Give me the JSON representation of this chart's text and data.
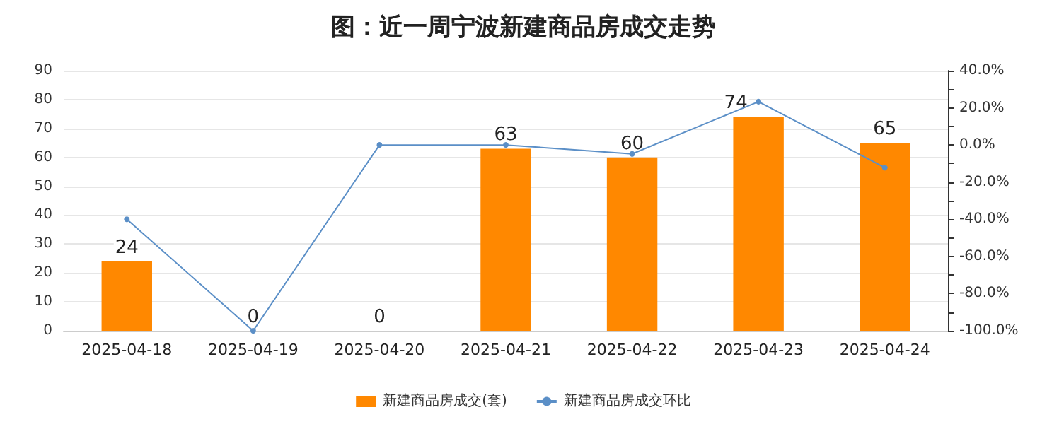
{
  "chart_data": {
    "type": "bar",
    "title": "图：近一周宁波新建商品房成交走势",
    "categories": [
      "2025-04-18",
      "2025-04-19",
      "2025-04-20",
      "2025-04-21",
      "2025-04-22",
      "2025-04-23",
      "2025-04-24"
    ],
    "series": [
      {
        "name": "新建商品房成交(套)",
        "color": "#ff8800",
        "values": [
          24,
          0,
          0,
          63,
          60,
          74,
          65
        ],
        "data_labels": true
      },
      {
        "name": "新建商品房成交环比",
        "type": "line",
        "axis": "y2",
        "color": "#5b8fc7",
        "marker": "circle",
        "values": [
          -40,
          -100,
          0,
          0,
          -4.8,
          23.3,
          -12.2
        ]
      }
    ],
    "ylim": [
      0,
      90
    ],
    "yticks": [
      0,
      10,
      20,
      30,
      40,
      50,
      60,
      70,
      80,
      90
    ],
    "y2lim": [
      -100,
      40
    ],
    "y2ticks": [
      {
        "value": -100,
        "label": "-100.0%"
      },
      {
        "value": -90,
        "label": null
      },
      {
        "value": -80,
        "label": "-80.0%"
      },
      {
        "value": -70,
        "label": null
      },
      {
        "value": -60,
        "label": "-60.0%"
      },
      {
        "value": -50,
        "label": null
      },
      {
        "value": -40,
        "label": "-40.0%"
      },
      {
        "value": -30,
        "label": null
      },
      {
        "value": -20,
        "label": "-20.0%"
      },
      {
        "value": -10,
        "label": null
      },
      {
        "value": 0,
        "label": "0.0%"
      },
      {
        "value": 10,
        "label": null
      },
      {
        "value": 20,
        "label": "20.0%"
      },
      {
        "value": 30,
        "label": null
      },
      {
        "value": 40,
        "label": "40.0%"
      }
    ],
    "grid": "y",
    "legend": "bottom"
  }
}
